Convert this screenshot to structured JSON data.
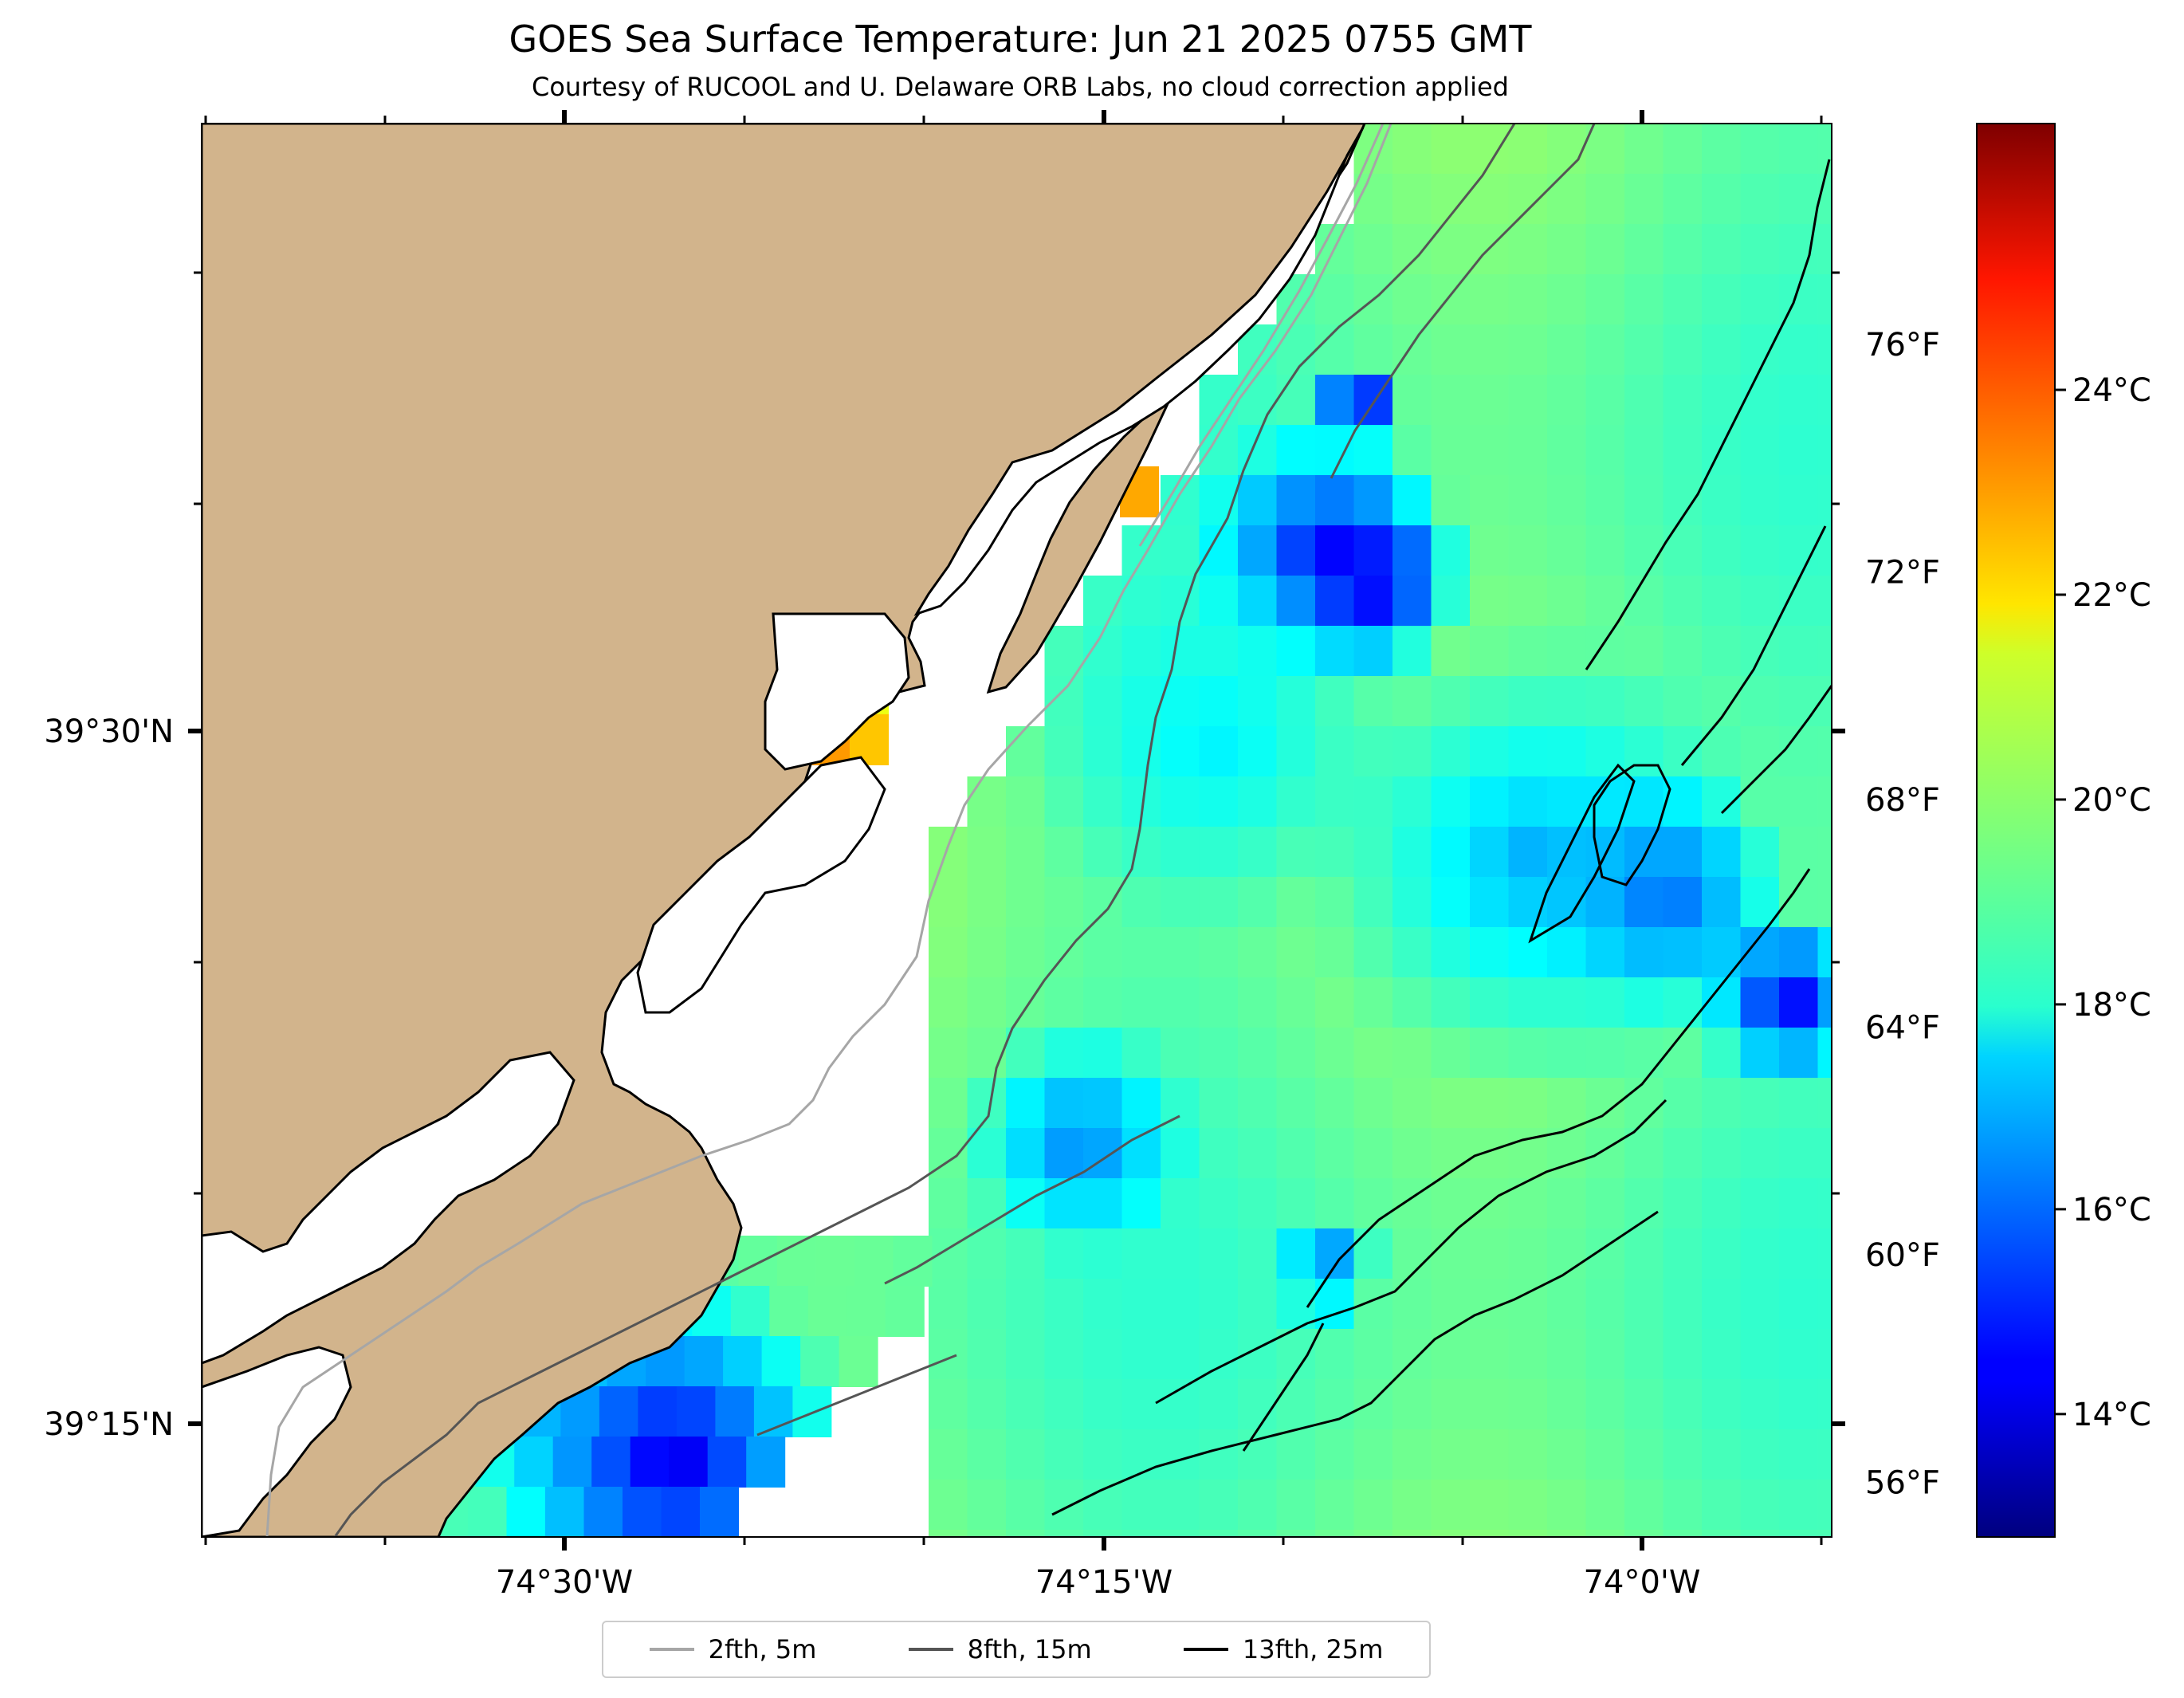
{
  "title": "GOES Sea Surface Temperature: Jun 21 2025 0755 GMT",
  "subtitle": "Courtesy of RUCOOL and U. Delaware ORB Labs, no cloud correction applied",
  "axes": {
    "x_ticks": [
      {
        "label": "74°30'W",
        "lon": -74.5
      },
      {
        "label": "74°15'W",
        "lon": -74.25
      },
      {
        "label": "74°0'W",
        "lon": -74.0
      }
    ],
    "y_ticks": [
      {
        "label": "39°30'N",
        "lat": 39.5
      },
      {
        "label": "39°15'N",
        "lat": 39.25
      }
    ],
    "lon_range": [
      -74.667,
      -73.908
    ],
    "lat_range": [
      39.185,
      39.697
    ]
  },
  "colorbar": {
    "colormap": "jet",
    "range_c": [
      12.8,
      26.6
    ],
    "celsius_ticks": [
      {
        "label": "14°C",
        "value": 14
      },
      {
        "label": "16°C",
        "value": 16
      },
      {
        "label": "18°C",
        "value": 18
      },
      {
        "label": "20°C",
        "value": 20
      },
      {
        "label": "22°C",
        "value": 22
      },
      {
        "label": "24°C",
        "value": 24
      }
    ],
    "fahrenheit_ticks": [
      {
        "label": "56°F",
        "value": 56
      },
      {
        "label": "60°F",
        "value": 60
      },
      {
        "label": "64°F",
        "value": 64
      },
      {
        "label": "68°F",
        "value": 68
      },
      {
        "label": "72°F",
        "value": 72
      },
      {
        "label": "76°F",
        "value": 76
      }
    ]
  },
  "legend": [
    {
      "label": "2fth, 5m",
      "color": "#a6a6a6"
    },
    {
      "label": "8fth, 15m",
      "color": "#555555"
    },
    {
      "label": "13fth, 25m",
      "color": "#000000"
    }
  ],
  "colors": {
    "land": "#d2b48c",
    "ocean_nodata": "#ffffff"
  }
}
